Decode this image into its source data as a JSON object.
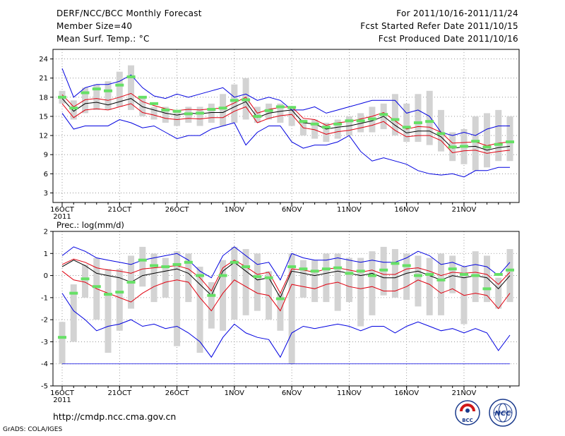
{
  "header": {
    "title": "DERF/NCC/BCC Monthly Forecast",
    "member_size": "Member Size=40",
    "variable": "Mean Surf. Temp.: °C",
    "period": "For 2011/10/16-2011/11/24",
    "fcst_started": "Fcst Started Refer Date 2011/10/15",
    "fcst_produced": "Fcst Produced Date 2011/10/16"
  },
  "footer": {
    "url": "http://cmdp.ncc.cma.gov.cn",
    "credit": "GrADS: COLA/IGES",
    "logo_bcc": "BCC",
    "logo_ncc": "NCC"
  },
  "colors": {
    "box": "#d3d3d3",
    "observed_marker": "#66e066",
    "mean_line": "#000000",
    "inner_spread": "#e0000f",
    "outer_spread": "#0000e0"
  },
  "chart_data": [
    {
      "type": "line",
      "title": "Mean Surf. Temp.: °C",
      "xlabel": "",
      "ylabel": "",
      "x": [
        1,
        2,
        3,
        4,
        5,
        6,
        7,
        8,
        9,
        10,
        11,
        12,
        13,
        14,
        15,
        16,
        17,
        18,
        19,
        20,
        21,
        22,
        23,
        24,
        25,
        26,
        27,
        28,
        29,
        30,
        31,
        32,
        33,
        34,
        35,
        36,
        37,
        38,
        39,
        40
      ],
      "x_tick_positions": [
        1,
        6,
        11,
        16,
        21,
        26,
        31,
        36
      ],
      "x_tick_labels": [
        "16OCT",
        "21OCT",
        "26OCT",
        "1NOV",
        "6NOV",
        "11NOV",
        "16NOV",
        "21NOV"
      ],
      "x_sublabel": "2011",
      "xlim": [
        0.2,
        40.8
      ],
      "yticks": [
        3,
        6,
        9,
        12,
        15,
        18,
        21,
        24
      ],
      "ylim": [
        1.5,
        25.5
      ],
      "series": [
        {
          "name": "ensemble mean",
          "values": [
            17.8,
            15.8,
            17.0,
            17.2,
            16.8,
            17.3,
            17.8,
            16.5,
            16.0,
            15.5,
            15.2,
            15.5,
            15.4,
            15.6,
            15.6,
            16.5,
            17.3,
            14.8,
            15.5,
            15.8,
            16.0,
            14.0,
            13.8,
            13.0,
            13.3,
            13.5,
            13.9,
            14.3,
            15.0,
            13.6,
            12.4,
            12.7,
            12.7,
            11.8,
            10.0,
            10.2,
            10.3,
            9.7,
            10.1,
            10.3
          ]
        },
        {
          "name": "inner upper",
          "values": [
            18.4,
            16.5,
            17.6,
            17.8,
            17.5,
            18.0,
            18.6,
            17.3,
            16.7,
            16.2,
            15.9,
            16.1,
            16.0,
            16.2,
            16.3,
            17.1,
            18.0,
            15.5,
            16.1,
            16.4,
            16.5,
            14.7,
            14.5,
            13.6,
            14.0,
            14.2,
            14.6,
            15.0,
            15.6,
            14.3,
            13.0,
            13.4,
            13.3,
            12.5,
            10.8,
            10.9,
            11.0,
            10.4,
            10.8,
            11.0
          ]
        },
        {
          "name": "inner lower",
          "values": [
            17.0,
            14.8,
            16.0,
            16.2,
            16.0,
            16.5,
            17.0,
            15.6,
            15.2,
            14.7,
            14.5,
            14.7,
            14.6,
            14.8,
            14.8,
            15.8,
            16.5,
            14.0,
            14.7,
            15.1,
            15.3,
            13.2,
            12.9,
            12.2,
            12.6,
            12.8,
            13.2,
            13.6,
            14.2,
            12.8,
            11.8,
            12.0,
            12.0,
            11.2,
            9.3,
            9.6,
            9.7,
            9.2,
            9.5,
            9.7
          ]
        },
        {
          "name": "outer upper",
          "values": [
            22.5,
            18.0,
            19.5,
            20.0,
            20.0,
            20.5,
            21.5,
            19.5,
            18.2,
            17.8,
            18.5,
            18.0,
            18.5,
            19.0,
            19.5,
            18.0,
            18.5,
            17.5,
            18.0,
            17.5,
            16.0,
            16.0,
            16.5,
            15.5,
            16.0,
            16.5,
            17.0,
            17.5,
            17.5,
            17.5,
            15.5,
            16.0,
            15.0,
            12.5,
            12.0,
            12.5,
            12.0,
            13.0,
            13.5,
            13.5
          ]
        },
        {
          "name": "outer lower",
          "values": [
            15.5,
            13.0,
            13.5,
            13.5,
            13.5,
            14.5,
            14.0,
            13.2,
            13.5,
            12.5,
            11.5,
            12.0,
            12.0,
            13.0,
            13.5,
            14.0,
            10.5,
            12.5,
            13.5,
            13.5,
            11.0,
            10.0,
            10.5,
            10.5,
            11.0,
            12.0,
            9.5,
            8.0,
            8.5,
            8.0,
            7.5,
            6.5,
            6.0,
            5.8,
            6.0,
            5.5,
            6.5,
            6.5,
            7.0,
            7.0
          ]
        },
        {
          "name": "observed",
          "values": [
            18.0,
            16.3,
            18.7,
            19.3,
            19.0,
            19.9,
            21.2,
            18.0,
            17.0,
            16.0,
            15.8,
            15.4,
            15.5,
            16.1,
            16.3,
            17.5,
            17.6,
            15.0,
            15.9,
            16.5,
            16.4,
            14.2,
            13.8,
            13.3,
            13.8,
            14.3,
            14.3,
            14.6,
            15.3,
            14.5,
            13.3,
            14.0,
            14.2,
            12.3,
            10.2,
            10.3,
            11.1,
            10.2,
            10.6,
            11.0
          ]
        },
        {
          "name": "box upper",
          "values": [
            19.0,
            17.5,
            19.5,
            20.0,
            20.5,
            22.0,
            23.0,
            18.0,
            16.5,
            16.5,
            16.0,
            16.5,
            16.5,
            17.0,
            18.5,
            20.0,
            21.0,
            16.5,
            17.0,
            17.0,
            16.5,
            14.5,
            14.5,
            14.0,
            14.5,
            15.0,
            15.5,
            16.5,
            17.0,
            18.5,
            17.0,
            18.5,
            19.0,
            16.0,
            12.5,
            13.0,
            15.0,
            15.5,
            16.0,
            15.0
          ]
        },
        {
          "name": "box lower",
          "values": [
            17.0,
            14.5,
            15.5,
            16.0,
            16.0,
            16.5,
            16.0,
            15.0,
            14.5,
            14.0,
            13.5,
            14.0,
            13.5,
            14.0,
            13.5,
            14.0,
            14.5,
            14.0,
            14.5,
            14.0,
            13.5,
            12.0,
            11.5,
            11.0,
            11.5,
            12.0,
            12.5,
            12.5,
            13.0,
            12.0,
            11.0,
            11.0,
            10.5,
            9.5,
            8.0,
            7.5,
            6.5,
            7.0,
            8.0,
            8.0
          ]
        }
      ]
    },
    {
      "type": "line",
      "title": "Prec.: log(mm/d)",
      "xlabel": "",
      "ylabel": "",
      "x": [
        1,
        2,
        3,
        4,
        5,
        6,
        7,
        8,
        9,
        10,
        11,
        12,
        13,
        14,
        15,
        16,
        17,
        18,
        19,
        20,
        21,
        22,
        23,
        24,
        25,
        26,
        27,
        28,
        29,
        30,
        31,
        32,
        33,
        34,
        35,
        36,
        37,
        38,
        39,
        40
      ],
      "x_tick_positions": [
        1,
        6,
        11,
        16,
        21,
        26,
        31,
        36
      ],
      "x_tick_labels": [
        "16OCT",
        "21OCT",
        "26OCT",
        "1NOV",
        "6NOV",
        "11NOV",
        "16NOV",
        "21NOV"
      ],
      "x_sublabel": "2011",
      "xlim": [
        0.2,
        40.8
      ],
      "yticks": [
        -5,
        -4,
        -3,
        -2,
        -1,
        0,
        1,
        2
      ],
      "ylim": [
        -5,
        2
      ],
      "series": [
        {
          "name": "ensemble mean",
          "values": [
            0.4,
            0.7,
            0.45,
            0.1,
            0.0,
            -0.1,
            -0.3,
            0.0,
            0.1,
            0.2,
            0.3,
            0.1,
            -0.4,
            -0.9,
            0.2,
            0.6,
            0.2,
            -0.2,
            -0.1,
            -1.0,
            0.2,
            0.1,
            0.0,
            0.1,
            0.2,
            0.1,
            0.0,
            0.1,
            -0.1,
            -0.1,
            0.1,
            0.2,
            0.0,
            -0.2,
            0.0,
            -0.1,
            0.0,
            -0.1,
            -0.6,
            0.0
          ]
        },
        {
          "name": "inner upper",
          "values": [
            0.5,
            0.75,
            0.6,
            0.35,
            0.25,
            0.2,
            0.1,
            0.3,
            0.35,
            0.4,
            0.45,
            0.3,
            -0.1,
            -0.7,
            0.35,
            0.7,
            0.4,
            0.05,
            0.15,
            -0.8,
            0.3,
            0.25,
            0.15,
            0.3,
            0.35,
            0.25,
            0.15,
            0.25,
            0.05,
            0.05,
            0.3,
            0.35,
            0.2,
            0.0,
            0.15,
            0.1,
            0.15,
            0.05,
            -0.4,
            0.15
          ]
        },
        {
          "name": "inner lower",
          "values": [
            0.2,
            -0.2,
            -0.3,
            -0.6,
            -0.8,
            -1.0,
            -1.2,
            -0.8,
            -0.5,
            -0.3,
            -0.2,
            -0.3,
            -1.0,
            -1.6,
            -0.8,
            -0.2,
            -0.5,
            -0.8,
            -0.9,
            -1.6,
            -0.4,
            -0.5,
            -0.6,
            -0.4,
            -0.3,
            -0.5,
            -0.6,
            -0.5,
            -0.7,
            -0.7,
            -0.5,
            -0.2,
            -0.4,
            -0.8,
            -0.6,
            -0.9,
            -0.8,
            -0.9,
            -1.5,
            -0.8
          ]
        },
        {
          "name": "outer upper",
          "values": [
            0.9,
            1.3,
            1.1,
            0.8,
            0.7,
            0.6,
            0.5,
            0.7,
            0.8,
            0.9,
            1.0,
            0.7,
            0.2,
            -0.1,
            0.9,
            1.3,
            0.9,
            0.5,
            0.6,
            -0.2,
            1.0,
            0.8,
            0.7,
            0.7,
            0.8,
            0.7,
            0.6,
            0.7,
            0.6,
            0.6,
            0.8,
            1.1,
            0.9,
            0.5,
            0.6,
            0.4,
            0.5,
            0.4,
            0.0,
            0.6
          ]
        },
        {
          "name": "outer lower",
          "values": [
            -0.8,
            -1.6,
            -2.0,
            -2.5,
            -2.3,
            -2.2,
            -2.0,
            -2.3,
            -2.2,
            -2.4,
            -2.3,
            -2.6,
            -3.0,
            -3.7,
            -2.8,
            -2.2,
            -2.6,
            -2.8,
            -2.9,
            -3.7,
            -2.6,
            -2.3,
            -2.4,
            -2.3,
            -2.2,
            -2.3,
            -2.5,
            -2.3,
            -2.3,
            -2.6,
            -2.3,
            -2.1,
            -2.3,
            -2.5,
            -2.4,
            -2.6,
            -2.4,
            -2.6,
            -3.4,
            -2.7
          ]
        },
        {
          "name": "observed",
          "values": [
            -2.8,
            -0.8,
            -0.15,
            -0.5,
            -0.85,
            -0.75,
            -0.3,
            0.7,
            0.45,
            0.4,
            0.5,
            0.6,
            0.0,
            -0.9,
            0.0,
            0.6,
            0.4,
            -0.05,
            -0.1,
            -1.05,
            0.4,
            0.3,
            0.2,
            0.3,
            0.35,
            0.1,
            0.2,
            0.0,
            0.25,
            0.55,
            0.45,
            0.0,
            0.05,
            -0.2,
            0.3,
            0.05,
            0.0,
            -0.6,
            0.05,
            0.25
          ]
        },
        {
          "name": "box upper",
          "values": [
            -2.1,
            -0.4,
            0.5,
            0.8,
            0.3,
            0.3,
            0.9,
            1.3,
            1.0,
            0.8,
            1.1,
            1.0,
            0.4,
            -0.3,
            0.7,
            1.3,
            1.2,
            1.0,
            0.2,
            -0.8,
            1.0,
            0.7,
            0.7,
            1.0,
            1.0,
            0.8,
            0.8,
            1.1,
            1.3,
            1.2,
            1.0,
            0.9,
            0.8,
            1.0,
            0.9,
            0.4,
            1.1,
            0.9,
            -0.1,
            1.2
          ]
        },
        {
          "name": "box lower",
          "values": [
            -4.0,
            -3.0,
            -1.0,
            -2.0,
            -3.5,
            -2.5,
            -1.5,
            -0.5,
            -1.2,
            -1.0,
            -3.2,
            -1.2,
            -3.5,
            -2.4,
            -2.5,
            -2.0,
            -1.8,
            -1.6,
            -2.0,
            -2.5,
            -4.0,
            -1.0,
            -1.2,
            -1.2,
            -1.6,
            -1.2,
            -2.3,
            -1.8,
            -0.9,
            -1.0,
            -1.1,
            -1.4,
            -1.8,
            -1.8,
            -0.8,
            -2.2,
            -1.2,
            -1.2,
            -1.5,
            -1.2
          ]
        }
      ]
    }
  ]
}
